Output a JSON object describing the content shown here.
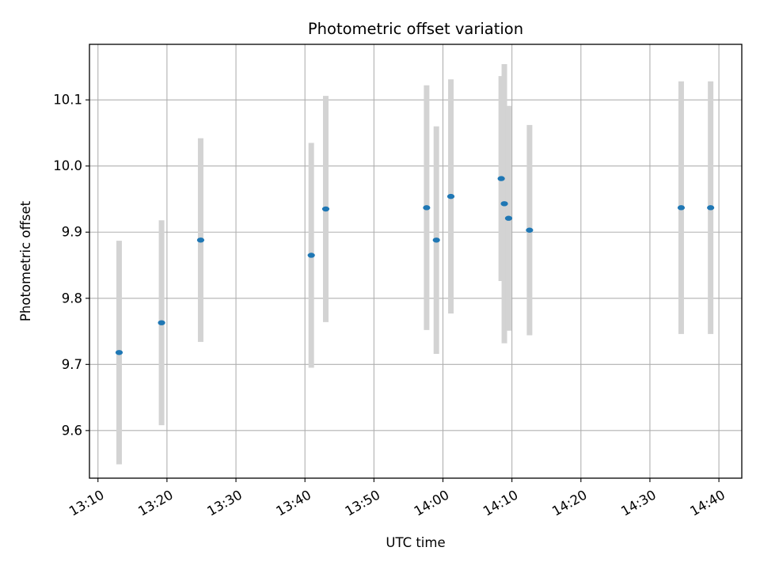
{
  "chart_data": {
    "type": "scatter",
    "title": "Photometric offset variation",
    "xlabel": "UTC time",
    "ylabel": "Photometric offset",
    "x_tick_labels": [
      "13:10",
      "13:20",
      "13:30",
      "13:40",
      "13:50",
      "14:00",
      "14:10",
      "14:20",
      "14:30",
      "14:40"
    ],
    "y_tick_labels": [
      "9.6",
      "9.7",
      "9.8",
      "9.9",
      "10.0",
      "10.1"
    ],
    "y_ticks": [
      9.6,
      9.7,
      9.8,
      9.9,
      10.0,
      10.1
    ],
    "xlim": [
      "13:08:46",
      "14:43:19"
    ],
    "ylim": [
      9.528,
      10.184
    ],
    "grid": true,
    "series": [
      {
        "marker_color": "#1f77b4",
        "errorbar_color": "#d3d3d3",
        "points": [
          {
            "x": "13:13:04",
            "y": 9.718,
            "err": 0.169
          },
          {
            "x": "13:19:13",
            "y": 9.763,
            "err": 0.155
          },
          {
            "x": "13:24:53",
            "y": 9.888,
            "err": 0.154
          },
          {
            "x": "13:40:55",
            "y": 9.865,
            "err": 0.17
          },
          {
            "x": "13:43:01",
            "y": 9.935,
            "err": 0.171
          },
          {
            "x": "13:57:38",
            "y": 9.937,
            "err": 0.185
          },
          {
            "x": "13:59:03",
            "y": 9.888,
            "err": 0.172
          },
          {
            "x": "14:01:09",
            "y": 9.954,
            "err": 0.177
          },
          {
            "x": "14:08:27",
            "y": 9.981,
            "err": 0.155
          },
          {
            "x": "14:08:54",
            "y": 9.943,
            "err": 0.211
          },
          {
            "x": "14:09:31",
            "y": 9.921,
            "err": 0.17
          },
          {
            "x": "14:12:33",
            "y": 9.903,
            "err": 0.159
          },
          {
            "x": "14:34:32",
            "y": 9.937,
            "err": 0.191
          },
          {
            "x": "14:38:48",
            "y": 9.937,
            "err": 0.191
          }
        ]
      }
    ]
  }
}
